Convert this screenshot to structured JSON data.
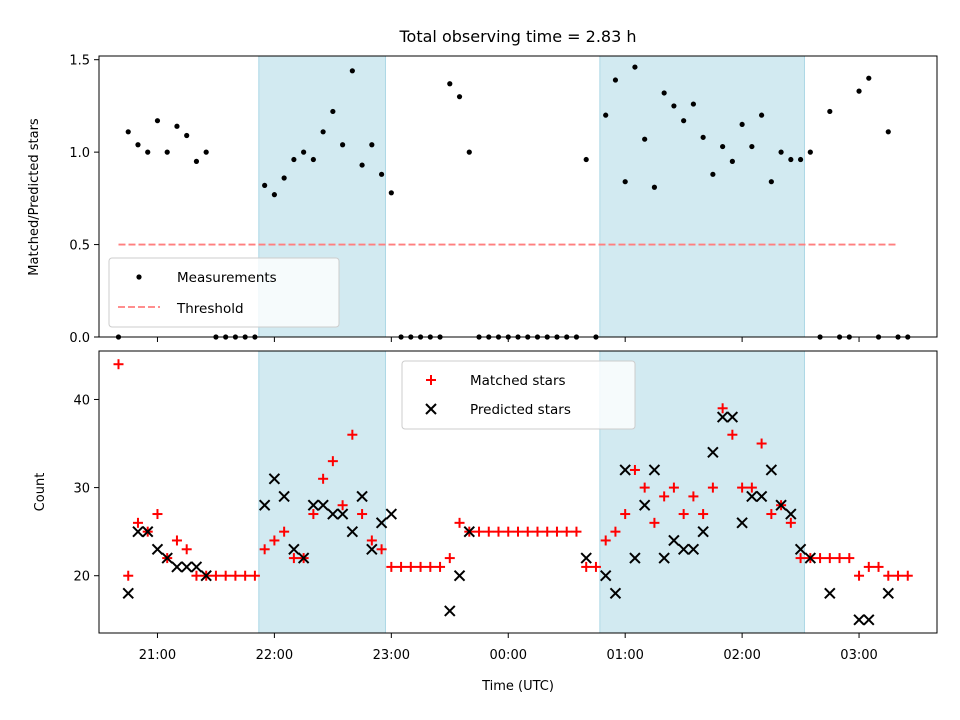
{
  "title": "Total observing time = 2.83 h",
  "colors": {
    "shade": "#add8e6",
    "measurement": "#000000",
    "threshold": "#ff7f7f",
    "matched": "#ff0000",
    "predicted": "#000000"
  },
  "chart_data": [
    {
      "type": "scatter",
      "ylabel": "Matched/Predicted stars",
      "xlim": [
        "20:30",
        "03:40"
      ],
      "ylim": [
        0,
        1.52
      ],
      "yticks": [
        "0.0",
        "0.5",
        "1.0",
        "1.5"
      ],
      "shaded_intervals": [
        [
          "21:52",
          "22:57"
        ],
        [
          "00:47",
          "02:32"
        ]
      ],
      "legend": {
        "position": "lower-left",
        "entries": [
          "Measurements",
          "Threshold"
        ]
      },
      "threshold": {
        "name": "Threshold",
        "value": 0.5,
        "x": [
          "20:40",
          "03:20"
        ]
      },
      "series": [
        {
          "name": "Measurements",
          "points": [
            [
              "20:40",
              0
            ],
            [
              "20:45",
              1.11
            ],
            [
              "20:50",
              1.04
            ],
            [
              "20:55",
              1.0
            ],
            [
              "21:00",
              1.17
            ],
            [
              "21:05",
              1.0
            ],
            [
              "21:10",
              1.14
            ],
            [
              "21:15",
              1.09
            ],
            [
              "21:20",
              0.95
            ],
            [
              "21:25",
              1.0
            ],
            [
              "21:30",
              0
            ],
            [
              "21:35",
              0
            ],
            [
              "21:40",
              0
            ],
            [
              "21:45",
              0
            ],
            [
              "21:50",
              0
            ],
            [
              "21:55",
              0.82
            ],
            [
              "22:00",
              0.77
            ],
            [
              "22:05",
              0.86
            ],
            [
              "22:10",
              0.96
            ],
            [
              "22:15",
              1.0
            ],
            [
              "22:20",
              0.96
            ],
            [
              "22:25",
              1.11
            ],
            [
              "22:30",
              1.22
            ],
            [
              "22:35",
              1.04
            ],
            [
              "22:40",
              1.44
            ],
            [
              "22:45",
              0.93
            ],
            [
              "22:50",
              1.04
            ],
            [
              "22:55",
              0.88
            ],
            [
              "23:00",
              0.78
            ],
            [
              "23:05",
              0
            ],
            [
              "23:10",
              0
            ],
            [
              "23:15",
              0
            ],
            [
              "23:20",
              0
            ],
            [
              "23:25",
              0
            ],
            [
              "23:30",
              1.37
            ],
            [
              "23:35",
              1.3
            ],
            [
              "23:40",
              1.0
            ],
            [
              "23:45",
              0
            ],
            [
              "23:50",
              0
            ],
            [
              "23:55",
              0
            ],
            [
              "00:00",
              0
            ],
            [
              "00:05",
              0
            ],
            [
              "00:10",
              0
            ],
            [
              "00:15",
              0
            ],
            [
              "00:20",
              0
            ],
            [
              "00:25",
              0
            ],
            [
              "00:30",
              0
            ],
            [
              "00:35",
              0
            ],
            [
              "00:40",
              0.96
            ],
            [
              "00:45",
              0
            ],
            [
              "00:50",
              1.2
            ],
            [
              "00:55",
              1.39
            ],
            [
              "01:00",
              0.84
            ],
            [
              "01:05",
              1.46
            ],
            [
              "01:10",
              1.07
            ],
            [
              "01:15",
              0.81
            ],
            [
              "01:20",
              1.32
            ],
            [
              "01:25",
              1.25
            ],
            [
              "01:30",
              1.17
            ],
            [
              "01:35",
              1.26
            ],
            [
              "01:40",
              1.08
            ],
            [
              "01:45",
              0.88
            ],
            [
              "01:50",
              1.03
            ],
            [
              "01:55",
              0.95
            ],
            [
              "02:00",
              1.15
            ],
            [
              "02:05",
              1.03
            ],
            [
              "02:10",
              1.2
            ],
            [
              "02:15",
              0.84
            ],
            [
              "02:20",
              1.0
            ],
            [
              "02:25",
              0.96
            ],
            [
              "02:30",
              0.96
            ],
            [
              "02:35",
              1.0
            ],
            [
              "02:40",
              0
            ],
            [
              "02:45",
              1.22
            ],
            [
              "02:50",
              0
            ],
            [
              "02:55",
              0
            ],
            [
              "03:00",
              1.33
            ],
            [
              "03:05",
              1.4
            ],
            [
              "03:10",
              0
            ],
            [
              "03:15",
              1.11
            ],
            [
              "03:20",
              0
            ],
            [
              "03:25",
              0
            ]
          ]
        }
      ]
    },
    {
      "type": "scatter",
      "xlabel": "Time (UTC)",
      "ylabel": "Count",
      "xlim": [
        "20:30",
        "03:40"
      ],
      "ylim": [
        13.5,
        45.5
      ],
      "yticks": [
        "20",
        "30",
        "40"
      ],
      "xticks": [
        "21:00",
        "22:00",
        "23:00",
        "00:00",
        "01:00",
        "02:00",
        "03:00"
      ],
      "shaded_intervals": [
        [
          "21:52",
          "22:57"
        ],
        [
          "00:47",
          "02:32"
        ]
      ],
      "legend": {
        "position": "top-center",
        "entries": [
          "Matched stars",
          "Predicted stars"
        ]
      },
      "series": [
        {
          "name": "Matched stars",
          "marker": "plus",
          "points": [
            [
              "20:40",
              44
            ],
            [
              "20:45",
              20
            ],
            [
              "20:50",
              26
            ],
            [
              "20:55",
              25
            ],
            [
              "21:00",
              27
            ],
            [
              "21:05",
              22
            ],
            [
              "21:10",
              24
            ],
            [
              "21:15",
              23
            ],
            [
              "21:20",
              20
            ],
            [
              "21:25",
              20
            ],
            [
              "21:30",
              20
            ],
            [
              "21:35",
              20
            ],
            [
              "21:40",
              20
            ],
            [
              "21:45",
              20
            ],
            [
              "21:50",
              20
            ],
            [
              "21:55",
              23
            ],
            [
              "22:00",
              24
            ],
            [
              "22:05",
              25
            ],
            [
              "22:10",
              22
            ],
            [
              "22:15",
              22
            ],
            [
              "22:20",
              27
            ],
            [
              "22:25",
              31
            ],
            [
              "22:30",
              33
            ],
            [
              "22:35",
              28
            ],
            [
              "22:40",
              36
            ],
            [
              "22:45",
              27
            ],
            [
              "22:50",
              24
            ],
            [
              "22:55",
              23
            ],
            [
              "23:00",
              21
            ],
            [
              "23:05",
              21
            ],
            [
              "23:10",
              21
            ],
            [
              "23:15",
              21
            ],
            [
              "23:20",
              21
            ],
            [
              "23:25",
              21
            ],
            [
              "23:30",
              22
            ],
            [
              "23:35",
              26
            ],
            [
              "23:40",
              25
            ],
            [
              "23:45",
              25
            ],
            [
              "23:50",
              25
            ],
            [
              "23:55",
              25
            ],
            [
              "00:00",
              25
            ],
            [
              "00:05",
              25
            ],
            [
              "00:10",
              25
            ],
            [
              "00:15",
              25
            ],
            [
              "00:20",
              25
            ],
            [
              "00:25",
              25
            ],
            [
              "00:30",
              25
            ],
            [
              "00:35",
              25
            ],
            [
              "00:40",
              21
            ],
            [
              "00:45",
              21
            ],
            [
              "00:50",
              24
            ],
            [
              "00:55",
              25
            ],
            [
              "01:00",
              27
            ],
            [
              "01:05",
              32
            ],
            [
              "01:10",
              30
            ],
            [
              "01:15",
              26
            ],
            [
              "01:20",
              29
            ],
            [
              "01:25",
              30
            ],
            [
              "01:30",
              27
            ],
            [
              "01:35",
              29
            ],
            [
              "01:40",
              27
            ],
            [
              "01:45",
              30
            ],
            [
              "01:50",
              39
            ],
            [
              "01:55",
              36
            ],
            [
              "02:00",
              30
            ],
            [
              "02:05",
              30
            ],
            [
              "02:10",
              35
            ],
            [
              "02:15",
              27
            ],
            [
              "02:20",
              28
            ],
            [
              "02:25",
              26
            ],
            [
              "02:30",
              22
            ],
            [
              "02:35",
              22
            ],
            [
              "02:40",
              22
            ],
            [
              "02:45",
              22
            ],
            [
              "02:50",
              22
            ],
            [
              "02:55",
              22
            ],
            [
              "03:00",
              20
            ],
            [
              "03:05",
              21
            ],
            [
              "03:10",
              21
            ],
            [
              "03:15",
              20
            ],
            [
              "03:20",
              20
            ],
            [
              "03:25",
              20
            ]
          ]
        },
        {
          "name": "Predicted stars",
          "marker": "x",
          "points": [
            [
              "20:45",
              18
            ],
            [
              "20:50",
              25
            ],
            [
              "20:55",
              25
            ],
            [
              "21:00",
              23
            ],
            [
              "21:05",
              22
            ],
            [
              "21:10",
              21
            ],
            [
              "21:15",
              21
            ],
            [
              "21:20",
              21
            ],
            [
              "21:25",
              20
            ],
            [
              "21:55",
              28
            ],
            [
              "22:00",
              31
            ],
            [
              "22:05",
              29
            ],
            [
              "22:10",
              23
            ],
            [
              "22:15",
              22
            ],
            [
              "22:20",
              28
            ],
            [
              "22:25",
              28
            ],
            [
              "22:30",
              27
            ],
            [
              "22:35",
              27
            ],
            [
              "22:40",
              25
            ],
            [
              "22:45",
              29
            ],
            [
              "22:50",
              23
            ],
            [
              "22:55",
              26
            ],
            [
              "23:00",
              27
            ],
            [
              "23:30",
              16
            ],
            [
              "23:35",
              20
            ],
            [
              "23:40",
              25
            ],
            [
              "00:40",
              22
            ],
            [
              "00:50",
              20
            ],
            [
              "00:55",
              18
            ],
            [
              "01:00",
              32
            ],
            [
              "01:05",
              22
            ],
            [
              "01:10",
              28
            ],
            [
              "01:15",
              32
            ],
            [
              "01:20",
              22
            ],
            [
              "01:25",
              24
            ],
            [
              "01:30",
              23
            ],
            [
              "01:35",
              23
            ],
            [
              "01:40",
              25
            ],
            [
              "01:45",
              34
            ],
            [
              "01:50",
              38
            ],
            [
              "01:55",
              38
            ],
            [
              "02:00",
              26
            ],
            [
              "02:05",
              29
            ],
            [
              "02:10",
              29
            ],
            [
              "02:15",
              32
            ],
            [
              "02:20",
              28
            ],
            [
              "02:25",
              27
            ],
            [
              "02:30",
              23
            ],
            [
              "02:35",
              22
            ],
            [
              "02:45",
              18
            ],
            [
              "03:00",
              15
            ],
            [
              "03:05",
              15
            ],
            [
              "03:15",
              18
            ]
          ]
        }
      ]
    }
  ]
}
